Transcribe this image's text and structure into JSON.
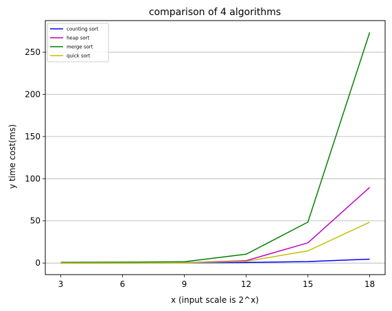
{
  "chart_data": {
    "type": "line",
    "title": "comparison of 4 algorithms",
    "xlabel": "x (input scale is 2^x)",
    "ylabel": "y time cost(ms)",
    "x": [
      3,
      6,
      9,
      12,
      15,
      18
    ],
    "xticks": [
      3,
      6,
      9,
      12,
      15,
      18
    ],
    "yticks": [
      0,
      50,
      100,
      150,
      200,
      250
    ],
    "xlim": [
      2.25,
      18.75
    ],
    "ylim": [
      -13.7,
      287.5
    ],
    "grid": "y-major",
    "legend_position": "top-left",
    "series": [
      {
        "name": "counting sort",
        "color": "#0000ff",
        "values": [
          0.1,
          0.1,
          0.2,
          0.6,
          1.8,
          4.6
        ]
      },
      {
        "name": "heap sort",
        "color": "#bf00bf",
        "values": [
          0.1,
          0.2,
          0.5,
          2.8,
          24.0,
          89.8
        ]
      },
      {
        "name": "merge sort",
        "color": "#008000",
        "values": [
          0.9,
          1.0,
          1.5,
          10.5,
          48.6,
          273.6
        ]
      },
      {
        "name": "quick sort",
        "color": "#bfbf00",
        "values": [
          0.1,
          0.1,
          0.4,
          2.0,
          14.5,
          48.5
        ]
      }
    ]
  }
}
